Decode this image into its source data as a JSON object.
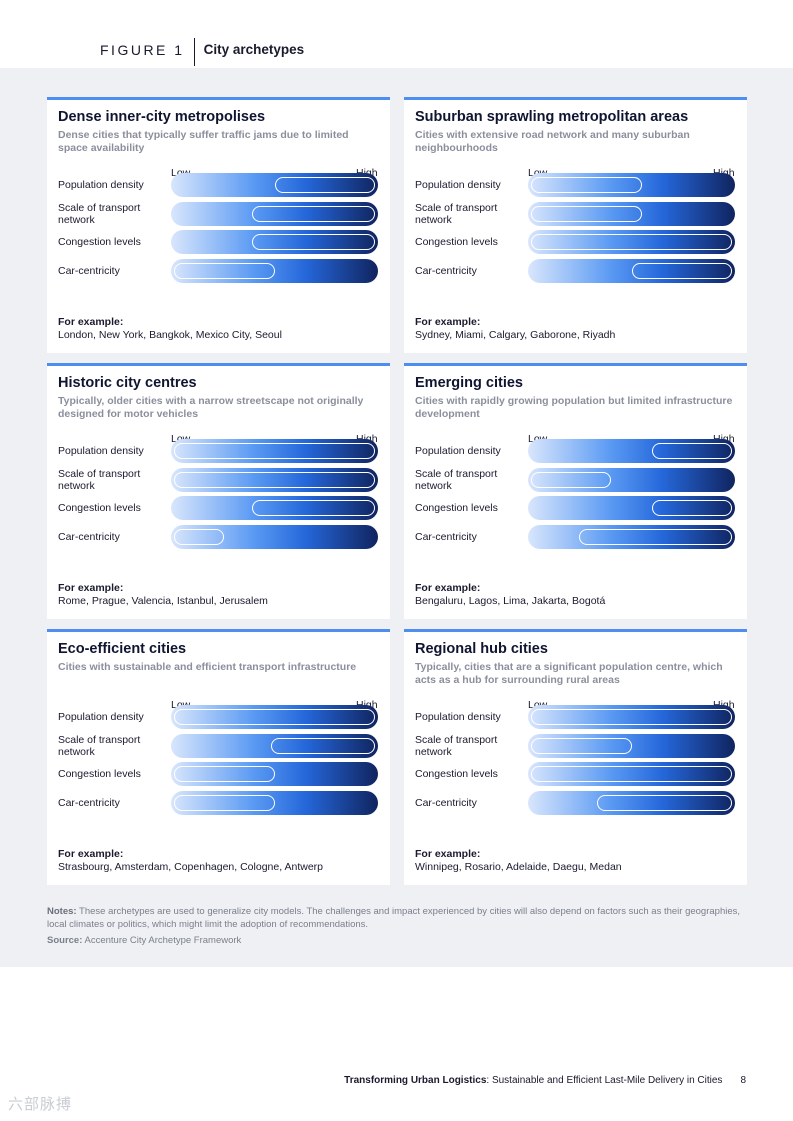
{
  "figure": {
    "label": "FIGURE 1",
    "title": "City archetypes"
  },
  "scale": {
    "low": "Low",
    "high": "High"
  },
  "example_heading": "For example:",
  "cards": [
    {
      "title": "Dense inner-city metropolises",
      "subtitle": "Dense cities that typically suffer traffic jams due to limited space availability",
      "metrics": [
        {
          "label": "Population density",
          "range": [
            0.5,
            1.0
          ]
        },
        {
          "label": "Scale of transport network",
          "range": [
            0.39,
            1.0
          ]
        },
        {
          "label": "Congestion levels",
          "range": [
            0.39,
            1.0
          ]
        },
        {
          "label": "Car-centricity",
          "range": [
            0.0,
            0.5
          ]
        }
      ],
      "examples": "London, New York, Bangkok, Mexico City, Seoul"
    },
    {
      "title": "Suburban sprawling metropolitan areas",
      "subtitle": "Cities with extensive road network and many suburban neighbourhoods",
      "metrics": [
        {
          "label": "Population density",
          "range": [
            0.0,
            0.55
          ]
        },
        {
          "label": "Scale of transport network",
          "range": [
            0.0,
            0.55
          ]
        },
        {
          "label": "Congestion levels",
          "range": [
            0.0,
            1.0
          ]
        },
        {
          "label": "Car-centricity",
          "range": [
            0.5,
            1.0
          ]
        }
      ],
      "examples": "Sydney, Miami, Calgary, Gaborone, Riyadh"
    },
    {
      "title": "Historic city centres",
      "subtitle": "Typically, older cities with a narrow streetscape not originally designed for motor vehicles",
      "metrics": [
        {
          "label": "Population density",
          "range": [
            0.0,
            1.0
          ]
        },
        {
          "label": "Scale of transport network",
          "range": [
            0.0,
            1.0
          ]
        },
        {
          "label": "Congestion levels",
          "range": [
            0.39,
            1.0
          ]
        },
        {
          "label": "Car-centricity",
          "range": [
            0.0,
            0.25
          ]
        }
      ],
      "examples": "Rome, Prague, Valencia, Istanbul, Jerusalem"
    },
    {
      "title": "Emerging cities",
      "subtitle": "Cities with rapidly growing population but limited infrastructure development",
      "metrics": [
        {
          "label": "Population density",
          "range": [
            0.6,
            1.0
          ]
        },
        {
          "label": "Scale of transport network",
          "range": [
            0.0,
            0.4
          ]
        },
        {
          "label": "Congestion levels",
          "range": [
            0.6,
            1.0
          ]
        },
        {
          "label": "Car-centricity",
          "range": [
            0.24,
            1.0
          ]
        }
      ],
      "examples": "Bengaluru, Lagos, Lima, Jakarta, Bogotá"
    },
    {
      "title": "Eco-efficient cities",
      "subtitle": "Cities with sustainable and efficient transport infrastructure",
      "metrics": [
        {
          "label": "Population density",
          "range": [
            0.0,
            1.0
          ]
        },
        {
          "label": "Scale of transport network",
          "range": [
            0.48,
            1.0
          ]
        },
        {
          "label": "Congestion levels",
          "range": [
            0.0,
            0.5
          ]
        },
        {
          "label": "Car-centricity",
          "range": [
            0.0,
            0.5
          ]
        }
      ],
      "examples": "Strasbourg, Amsterdam, Copenhagen, Cologne, Antwerp"
    },
    {
      "title": "Regional hub cities",
      "subtitle": "Typically, cities that are a significant population centre, which acts as a hub for surrounding rural areas",
      "metrics": [
        {
          "label": "Population density",
          "range": [
            0.0,
            1.0
          ]
        },
        {
          "label": "Scale of transport network",
          "range": [
            0.0,
            0.5
          ]
        },
        {
          "label": "Congestion levels",
          "range": [
            0.0,
            1.0
          ]
        },
        {
          "label": "Car-centricity",
          "range": [
            0.33,
            1.0
          ]
        }
      ],
      "examples": "Winnipeg, Rosario, Adelaide, Daegu, Medan"
    }
  ],
  "notes": {
    "label": "Notes:",
    "text": " These archetypes are used to generalize city models. The challenges and impact experienced by cities will also depend on factors such as their geographies, local climates or politics, which might limit the adoption of recommendations."
  },
  "source": {
    "label": "Source:",
    "text": " Accenture City Archetype Framework"
  },
  "footer": {
    "doc_title": "Transforming Urban Logistics",
    "doc_subtitle": ": Sustainable and Efficient Last-Mile Delivery in Cities",
    "page": "8"
  },
  "watermark": "六部脉搏"
}
